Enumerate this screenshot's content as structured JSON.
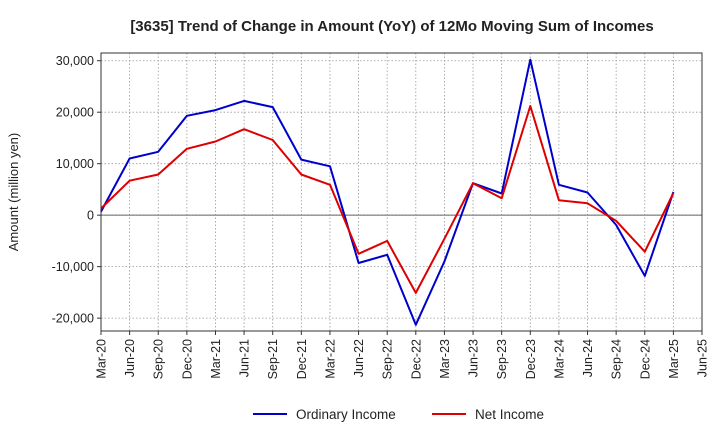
{
  "chart_data": {
    "type": "line",
    "title": "[3635]  Trend of Change in Amount (YoY) of 12Mo Moving Sum of Incomes",
    "xlabel": "",
    "ylabel": "Amount (million yen)",
    "categories": [
      "Mar-20",
      "Jun-20",
      "Sep-20",
      "Dec-20",
      "Mar-21",
      "Jun-21",
      "Sep-21",
      "Dec-21",
      "Mar-22",
      "Jun-22",
      "Sep-22",
      "Dec-22",
      "Mar-23",
      "Jun-23",
      "Sep-23",
      "Dec-23",
      "Mar-24",
      "Jun-24",
      "Sep-24",
      "Dec-24",
      "Mar-25",
      "Jun-25"
    ],
    "ylim": [
      -22500,
      31500
    ],
    "yticks": [
      -20000,
      -10000,
      0,
      10000,
      20000,
      30000
    ],
    "ytick_labels": [
      "-20,000",
      "-10,000",
      "0",
      "10,000",
      "20,000",
      "30,000"
    ],
    "grid": true,
    "legend_position": "bottom",
    "series": [
      {
        "name": "Ordinary Income",
        "color": "#0000cc",
        "values": [
          700,
          11000,
          12300,
          19300,
          20400,
          22200,
          21000,
          10800,
          9500,
          -9300,
          -7700,
          -21300,
          -9000,
          6200,
          4200,
          30200,
          5900,
          4400,
          -1900,
          -11800,
          4500,
          null
        ]
      },
      {
        "name": "Net Income",
        "color": "#dd0000",
        "values": [
          1300,
          6700,
          7900,
          12900,
          14300,
          16700,
          14600,
          7900,
          5900,
          -7500,
          -5000,
          -15100,
          -4600,
          6200,
          3300,
          21200,
          2900,
          2300,
          -1100,
          -7100,
          4300,
          null
        ]
      }
    ]
  }
}
